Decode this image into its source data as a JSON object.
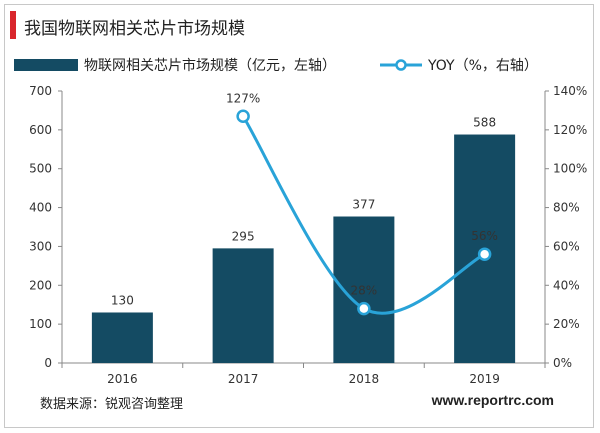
{
  "header": {
    "title": "我国物联网相关芯片市场规模"
  },
  "footer": {
    "source": "数据来源：锐观咨询整理",
    "website": "www.reportrc.com"
  },
  "colors": {
    "bar": "#144b63",
    "line": "#29a3d8",
    "accent": "#d9262c"
  },
  "chart_data": {
    "type": "bar",
    "categories": [
      "2016",
      "2017",
      "2018",
      "2019"
    ],
    "series": [
      {
        "name": "物联网相关芯片市场规模（亿元，左轴）",
        "type": "bar",
        "axis": "left",
        "values": [
          130,
          295,
          377,
          588
        ],
        "labels": [
          "130",
          "295",
          "377",
          "588"
        ]
      },
      {
        "name": "YOY（%，右轴）",
        "type": "line",
        "axis": "right",
        "values": [
          127,
          28,
          56
        ],
        "x": [
          "2017",
          "2018",
          "2019"
        ],
        "labels": [
          "127%",
          "28%",
          "56%"
        ]
      }
    ],
    "y_left": {
      "min": 0,
      "max": 700,
      "ticks": [
        "0",
        "100",
        "200",
        "300",
        "400",
        "500",
        "600",
        "700"
      ]
    },
    "y_right": {
      "min": 0,
      "max": 140,
      "ticks": [
        "0%",
        "20%",
        "40%",
        "60%",
        "80%",
        "100%",
        "120%",
        "140%"
      ]
    },
    "grid": false,
    "legend_position": "top-left"
  }
}
